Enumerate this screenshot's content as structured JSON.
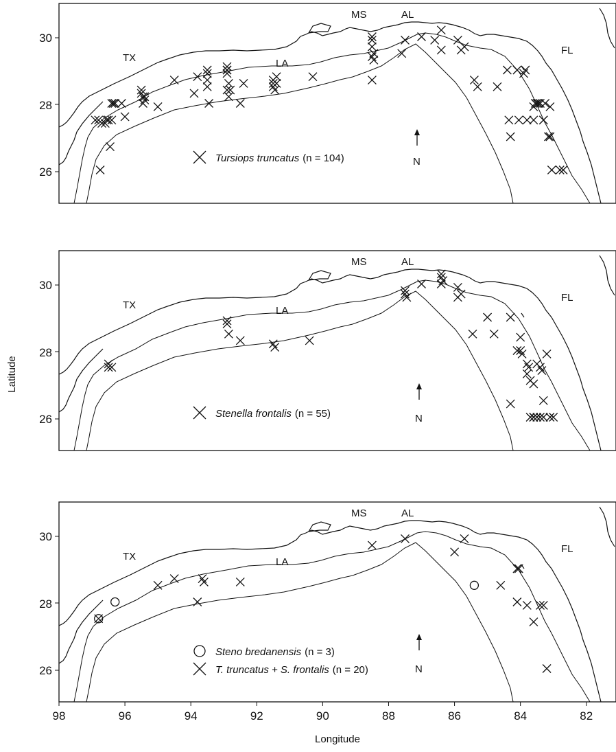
{
  "axes": {
    "x_label": "Longitude",
    "y_label": "Latitude",
    "x_ticks": [
      "98",
      "96",
      "94",
      "92",
      "90",
      "88",
      "86",
      "84",
      "82"
    ],
    "y_ticks": [
      "30",
      "28",
      "26"
    ],
    "x_range": [
      98,
      81.1
    ],
    "y_range": [
      25,
      31
    ]
  },
  "state_labels": [
    "TX",
    "LA",
    "MS",
    "AL",
    "FL"
  ],
  "north_label": "N",
  "panels": [
    {
      "id": "tursiops",
      "legend": [
        {
          "marker": "cross",
          "species": "Tursiops truncatus",
          "n_label": "(n = 104)"
        }
      ]
    },
    {
      "id": "stenella",
      "legend": [
        {
          "marker": "cross",
          "species": "Stenella frontalis",
          "n_label": "(n = 55)"
        }
      ]
    },
    {
      "id": "combined",
      "legend": [
        {
          "marker": "circle",
          "species": "Steno bredanensis",
          "n_label": "(n = 3)"
        },
        {
          "marker": "cross",
          "species": "T. truncatus + S. frontalis",
          "n_label": "(n = 20)"
        }
      ]
    }
  ],
  "chart_data": [
    {
      "type": "scatter",
      "panel": "tursiops",
      "series": [
        {
          "name": "Tursiops truncatus",
          "marker": "cross",
          "lon": [
            96.9,
            96.8,
            96.75,
            96.7,
            96.6,
            96.55,
            96.5,
            96.45,
            96.4,
            96.4,
            96.35,
            96.3,
            96.1,
            96.0,
            95.5,
            95.5,
            95.45,
            95.4,
            95.45,
            95.4,
            95.0,
            94.5,
            93.9,
            93.8,
            93.5,
            93.5,
            93.5,
            93.5,
            93.45,
            92.9,
            92.9,
            92.9,
            92.85,
            92.9,
            92.85,
            92.9,
            92.8,
            92.5,
            92.4,
            91.5,
            91.5,
            91.5,
            91.45,
            91.4,
            91.4,
            90.3,
            88.5,
            88.5,
            88.45,
            88.5,
            88.45,
            88.5,
            88.5,
            87.6,
            87.5,
            87.0,
            86.6,
            86.4,
            86.4,
            85.9,
            85.8,
            85.7,
            85.4,
            85.3,
            84.7,
            84.4,
            84.1,
            83.9,
            83.85,
            83.8,
            83.6,
            83.55,
            83.5,
            83.45,
            83.4,
            83.3,
            83.25,
            83.15,
            83.1,
            83.05,
            82.8,
            82.7,
            84.3,
            84.35,
            84.05,
            83.6,
            83.3,
            83.1
          ],
          "lat": [
            27.5,
            27.5,
            26.0,
            27.4,
            27.4,
            27.5,
            27.5,
            26.7,
            27.5,
            28.0,
            28.0,
            28.0,
            28.0,
            27.6,
            28.4,
            28.3,
            28.2,
            28.1,
            28.0,
            28.2,
            27.9,
            28.7,
            28.3,
            28.8,
            29.0,
            28.9,
            28.7,
            28.5,
            28.0,
            29.0,
            29.0,
            28.9,
            28.6,
            28.4,
            28.2,
            29.1,
            28.4,
            28.0,
            28.6,
            28.7,
            28.6,
            28.5,
            28.4,
            28.6,
            28.8,
            28.8,
            29.9,
            29.7,
            29.5,
            29.4,
            29.3,
            30.0,
            28.7,
            29.5,
            29.9,
            30.0,
            29.9,
            29.6,
            30.2,
            29.9,
            29.6,
            29.7,
            28.7,
            28.5,
            28.5,
            29.0,
            29.0,
            28.9,
            29.0,
            27.5,
            27.5,
            28.0,
            28.0,
            28.0,
            28.0,
            27.5,
            28.0,
            27.0,
            27.0,
            26.0,
            26.0,
            26.0,
            27.0,
            27.5,
            27.5,
            27.9,
            27.5,
            27.9
          ]
        }
      ]
    },
    {
      "type": "scatter",
      "panel": "stenella",
      "series": [
        {
          "name": "Stenella frontalis",
          "marker": "cross",
          "lon": [
            96.5,
            96.4,
            96.5,
            92.9,
            92.9,
            92.85,
            92.5,
            91.5,
            91.45,
            90.4,
            87.5,
            87.5,
            87.45,
            87.0,
            86.4,
            86.4,
            86.35,
            86.4,
            85.9,
            85.9,
            85.8,
            85.45,
            85.0,
            84.8,
            84.3,
            84.1,
            84.0,
            83.95,
            83.8,
            83.75,
            83.7,
            83.6,
            83.5,
            83.4,
            83.35,
            83.3,
            83.2,
            83.6,
            83.5,
            83.4,
            83.7,
            83.6,
            83.3,
            83.1,
            83.0,
            84.0,
            83.8,
            84.3
          ],
          "lat": [
            27.5,
            27.5,
            27.6,
            28.9,
            28.8,
            28.5,
            28.3,
            28.2,
            28.1,
            28.3,
            29.8,
            29.7,
            29.6,
            30.0,
            30.3,
            30.2,
            30.1,
            30.0,
            29.6,
            29.9,
            29.7,
            28.5,
            29.0,
            28.5,
            29.0,
            28.0,
            28.0,
            27.9,
            27.6,
            27.5,
            27.1,
            27.0,
            27.6,
            27.5,
            27.4,
            26.5,
            27.9,
            26.0,
            26.0,
            26.0,
            26.0,
            26.0,
            26.0,
            26.0,
            26.0,
            28.4,
            27.3,
            26.4
          ]
        }
      ]
    },
    {
      "type": "scatter",
      "panel": "combined",
      "series": [
        {
          "name": "Steno bredanensis",
          "marker": "circle",
          "lon": [
            96.8,
            96.3,
            85.4
          ],
          "lat": [
            27.5,
            28.0,
            28.5
          ]
        },
        {
          "name": "T. truncatus + S. frontalis",
          "marker": "cross",
          "lon": [
            96.8,
            95.0,
            94.5,
            93.8,
            93.65,
            93.6,
            92.5,
            88.5,
            87.5,
            86.0,
            85.7,
            84.6,
            84.1,
            84.05,
            84.1,
            83.8,
            83.4,
            83.3,
            83.6,
            83.2
          ],
          "lat": [
            27.5,
            28.5,
            28.7,
            28.0,
            28.7,
            28.6,
            28.6,
            29.7,
            29.9,
            29.5,
            29.9,
            28.5,
            29.0,
            29.0,
            28.0,
            27.9,
            27.9,
            27.9,
            27.4,
            26.0
          ]
        }
      ]
    }
  ]
}
